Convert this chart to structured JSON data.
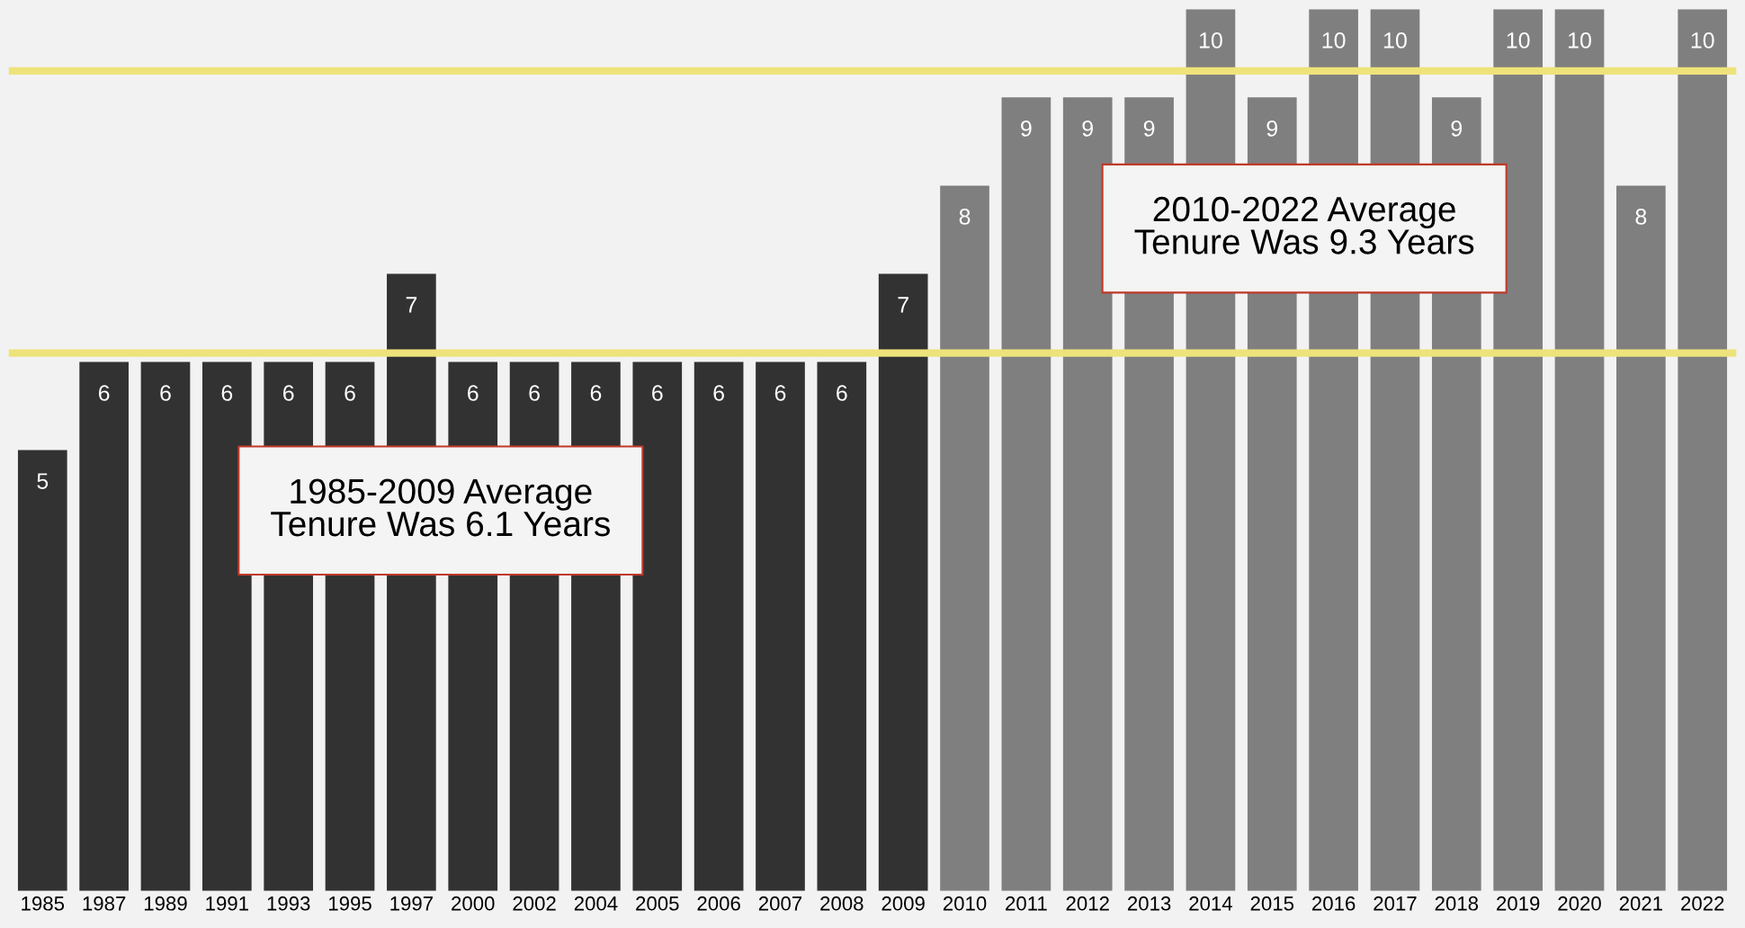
{
  "chart_data": {
    "type": "bar",
    "categories": [
      "1985",
      "1987",
      "1989",
      "1991",
      "1993",
      "1995",
      "1997",
      "2000",
      "2002",
      "2004",
      "2005",
      "2006",
      "2007",
      "2008",
      "2009",
      "2010",
      "2011",
      "2012",
      "2013",
      "2014",
      "2015",
      "2016",
      "2017",
      "2018",
      "2019",
      "2020",
      "2021",
      "2022"
    ],
    "values": [
      5,
      6,
      6,
      6,
      6,
      6,
      7,
      6,
      6,
      6,
      6,
      6,
      6,
      6,
      7,
      8,
      9,
      9,
      9,
      10,
      9,
      10,
      10,
      9,
      10,
      10,
      8,
      10
    ],
    "colors": [
      "#323232",
      "#323232",
      "#323232",
      "#323232",
      "#323232",
      "#323232",
      "#323232",
      "#323232",
      "#323232",
      "#323232",
      "#323232",
      "#323232",
      "#323232",
      "#323232",
      "#323232",
      "#7f7f7f",
      "#7f7f7f",
      "#7f7f7f",
      "#7f7f7f",
      "#7f7f7f",
      "#7f7f7f",
      "#7f7f7f",
      "#7f7f7f",
      "#7f7f7f",
      "#7f7f7f",
      "#7f7f7f",
      "#7f7f7f",
      "#7f7f7f"
    ],
    "data_labels": true,
    "ref_lines": [
      {
        "axis": "y",
        "value": 6.1,
        "color": "#eee37a"
      },
      {
        "axis": "y",
        "value": 9.3,
        "color": "#eee37a"
      }
    ],
    "annotations": [
      "1985-2009 Average\nTenure Was 6.1 Years",
      "2010-2022 Average\nTenure Was 9.3 Years"
    ],
    "grid": false,
    "legend": false
  }
}
